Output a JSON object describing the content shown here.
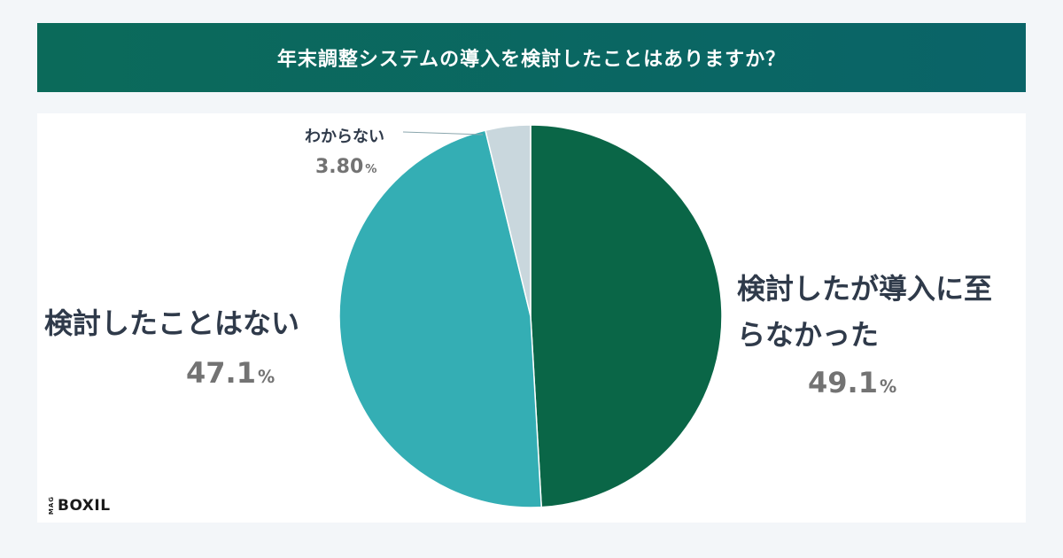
{
  "title": "年末調整システムの導入を検討したことはありますか？",
  "chart_data": {
    "type": "pie",
    "slices": [
      {
        "label": "検討したが導入に至らなかった",
        "value": 49.1,
        "value_text": "49.1",
        "color": "#0a6647"
      },
      {
        "label": "検討したことはない",
        "value": 47.1,
        "value_text": "47.1",
        "color": "#34aeb4"
      },
      {
        "label": "わからない",
        "value": 3.8,
        "value_text": "3.80",
        "color": "#c9d7dd"
      }
    ],
    "unit": "%"
  },
  "brand": {
    "prefix": "MAG",
    "name": "BOXIL"
  }
}
